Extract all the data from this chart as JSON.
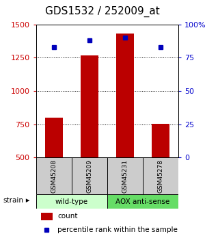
{
  "title": "GDS1532 / 252009_at",
  "samples": [
    "GSM45208",
    "GSM45209",
    "GSM45231",
    "GSM45278"
  ],
  "counts": [
    800,
    1265,
    1430,
    755
  ],
  "percentiles": [
    83,
    88,
    90,
    83
  ],
  "ylim_left": [
    500,
    1500
  ],
  "ylim_right": [
    0,
    100
  ],
  "yticks_left": [
    500,
    750,
    1000,
    1250,
    1500
  ],
  "yticks_right": [
    0,
    25,
    50,
    75,
    100
  ],
  "ytick_labels_right": [
    "0",
    "25",
    "50",
    "75",
    "100%"
  ],
  "bar_color": "#bb0000",
  "dot_color": "#0000bb",
  "bar_width": 0.5,
  "groups": [
    {
      "label": "wild-type",
      "indices": [
        0,
        1
      ],
      "color": "#ccffcc"
    },
    {
      "label": "AOX anti-sense",
      "indices": [
        2,
        3
      ],
      "color": "#66dd66"
    }
  ],
  "strain_label": "strain",
  "legend_count_label": "count",
  "legend_pct_label": "percentile rank within the sample",
  "left_tick_color": "#cc0000",
  "right_tick_color": "#0000cc",
  "sample_box_color": "#cccccc",
  "title_fontsize": 11,
  "tick_fontsize": 8,
  "legend_fontsize": 7.5
}
